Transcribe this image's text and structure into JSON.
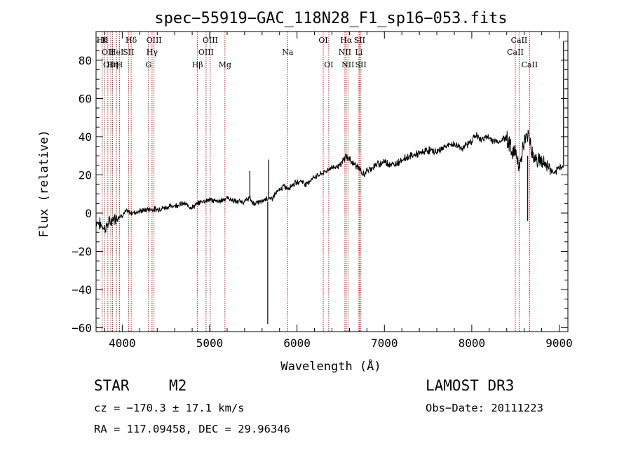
{
  "chart_data": {
    "type": "line",
    "title": "spec−55919−GAC_118N28_F1_sp16−053.fits",
    "xlabel": "Wavelength (Å)",
    "ylabel": "Flux (relative)",
    "xlim": [
      3700,
      9100
    ],
    "ylim": [
      -62,
      95
    ],
    "xticks": [
      4000,
      5000,
      6000,
      7000,
      8000,
      9000
    ],
    "yticks": [
      -60,
      -40,
      -20,
      0,
      20,
      40,
      60,
      80
    ],
    "xtick_labels": [
      "4000",
      "5000",
      "6000",
      "7000",
      "8000",
      "9000"
    ],
    "ytick_labels": [
      "−60",
      "−40",
      "−20",
      "0",
      "20",
      "40",
      "60",
      "80"
    ],
    "grid": false,
    "series": [
      {
        "x": [
          3700,
          3750,
          3800,
          3850,
          3900,
          3950,
          4000,
          4050,
          4100,
          4200,
          4300,
          4400,
          4500,
          4600,
          4700,
          4800,
          4900,
          5000,
          5100,
          5200,
          5300,
          5400,
          5450,
          5500,
          5600,
          5650,
          5700,
          5750,
          5800,
          5850,
          5900,
          5950,
          6000,
          6050,
          6100,
          6200,
          6300,
          6400,
          6500,
          6560,
          6600,
          6700,
          6750,
          6800,
          6900,
          7000,
          7100,
          7200,
          7300,
          7400,
          7500,
          7600,
          7700,
          7800,
          7900,
          8000,
          8050,
          8100,
          8150,
          8200,
          8300,
          8400,
          8450,
          8500,
          8550,
          8600,
          8650,
          8700,
          8750,
          8800,
          8850,
          8900,
          8950,
          9000,
          9050
        ],
        "y": [
          -4,
          -6,
          -8,
          -5,
          -3,
          -2,
          -1,
          1,
          0,
          1,
          2,
          2,
          3,
          4,
          5,
          3,
          6,
          7,
          6,
          8,
          6,
          6,
          8,
          5,
          6,
          8,
          7,
          10,
          12,
          14,
          13,
          15,
          16,
          17,
          15,
          19,
          21,
          24,
          25,
          30,
          28,
          24,
          20,
          22,
          25,
          27,
          25,
          28,
          30,
          31,
          33,
          32,
          35,
          36,
          34,
          38,
          41,
          38,
          40,
          39,
          37,
          40,
          33,
          32,
          25,
          37,
          42,
          30,
          28,
          27,
          25,
          23,
          20,
          24,
          25
        ]
      }
    ],
    "spikes": [
      {
        "x": 5460,
        "y_from": 8,
        "y_to": 22
      },
      {
        "x": 5675,
        "y_from": 8,
        "y_to": 28
      },
      {
        "x": 5665,
        "y_from": 6,
        "y_to": -58
      },
      {
        "x": 8640,
        "y_from": 30,
        "y_to": -4
      },
      {
        "x": 9050,
        "y_from": 25,
        "y_to": 90
      }
    ],
    "lines": [
      {
        "x": 3770,
        "label": "Hθ",
        "row": 0
      },
      {
        "x": 3798,
        "label": "K",
        "row": 0
      },
      {
        "x": 3835,
        "label": "OII",
        "row": 1
      },
      {
        "x": 3869,
        "label": "OIII",
        "row": 2
      },
      {
        "x": 3889,
        "label": "Hη",
        "row": 2
      },
      {
        "x": 3934,
        "label": "HeI",
        "row": 1
      },
      {
        "x": 3968,
        "label": "H",
        "row": 2
      },
      {
        "x": 4072,
        "label": "SII",
        "row": 1
      },
      {
        "x": 4102,
        "label": "Hδ",
        "row": 0
      },
      {
        "x": 4300,
        "label": "G",
        "row": 2
      },
      {
        "x": 4341,
        "label": "Hγ",
        "row": 1
      },
      {
        "x": 4363,
        "label": "OIII",
        "row": 0
      },
      {
        "x": 4861,
        "label": "Hβ",
        "row": 2
      },
      {
        "x": 4959,
        "label": "OIII",
        "row": 1
      },
      {
        "x": 5007,
        "label": "OIII",
        "row": 0
      },
      {
        "x": 5175,
        "label": "Mg",
        "row": 2
      },
      {
        "x": 5893,
        "label": "Na",
        "row": 1
      },
      {
        "x": 6300,
        "label": "OI",
        "row": 0
      },
      {
        "x": 6363,
        "label": "OI",
        "row": 2
      },
      {
        "x": 6548,
        "label": "NII",
        "row": 1
      },
      {
        "x": 6563,
        "label": "Hα",
        "row": 0
      },
      {
        "x": 6583,
        "label": "NII",
        "row": 2
      },
      {
        "x": 6708,
        "label": "Li",
        "row": 1
      },
      {
        "x": 6716,
        "label": "SII",
        "row": 0
      },
      {
        "x": 6731,
        "label": "SII",
        "row": 2
      },
      {
        "x": 8498,
        "label": "CaII",
        "row": 1
      },
      {
        "x": 8542,
        "label": "CaII",
        "row": 0
      },
      {
        "x": 8662,
        "label": "CaII",
        "row": 2
      }
    ]
  },
  "info": {
    "object_class": "STAR",
    "subclass": "M2",
    "survey": "LAMOST DR3",
    "velocity": "cz = −170.3 ± 17.1 km/s",
    "obs_date": "Obs−Date: 20111223",
    "coords": "RA = 117.09458, DEC =  29.96346"
  }
}
